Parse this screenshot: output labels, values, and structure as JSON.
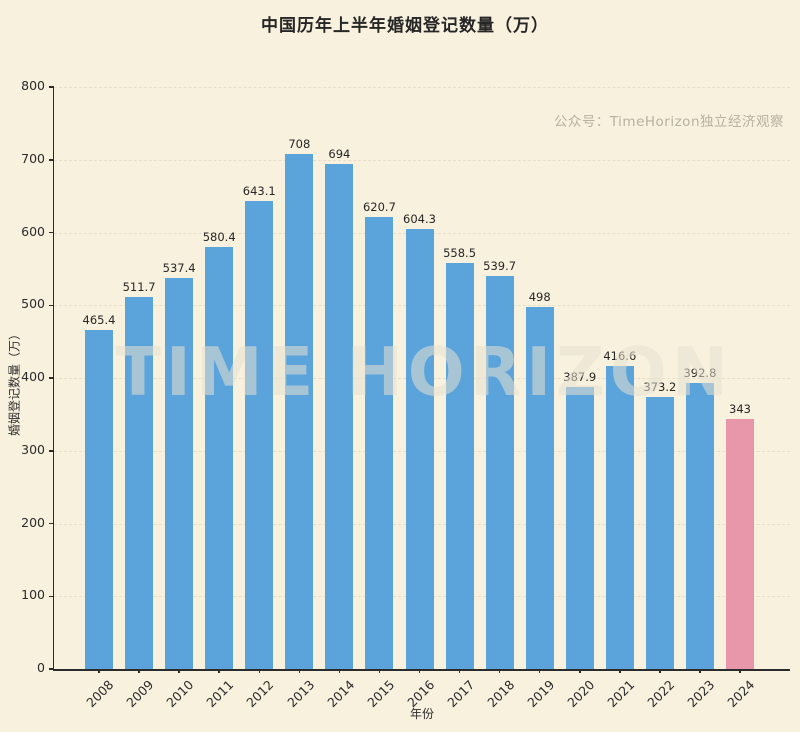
{
  "page": {
    "title": "中国历年上半年婚姻登记数量（万）",
    "watermark_small": "公众号：TimeHorizon独立经济观察",
    "watermark_large": "TIME HORIZON"
  },
  "chart_data": {
    "type": "bar",
    "title": "中国历年上半年婚姻登记数量（万）",
    "xlabel": "年份",
    "ylabel": "婚姻登记数量（万）",
    "categories": [
      "2008",
      "2009",
      "2010",
      "2011",
      "2012",
      "2013",
      "2014",
      "2015",
      "2016",
      "2017",
      "2018",
      "2019",
      "2020",
      "2021",
      "2022",
      "2023",
      "2024"
    ],
    "values": [
      465.4,
      511.7,
      537.4,
      580.4,
      643.1,
      708,
      694,
      620.7,
      604.3,
      558.5,
      539.7,
      498,
      387.9,
      416.6,
      373.2,
      392.8,
      343
    ],
    "bar_labels": [
      "465.4",
      "511.7",
      "537.4",
      "580.4",
      "643.1",
      "708",
      "694",
      "620.7",
      "604.3",
      "558.5",
      "539.7",
      "498",
      "387.9",
      "416.6",
      "373.2",
      "392.8",
      "343"
    ],
    "ylim": [
      0,
      800
    ],
    "yticks": [
      0,
      100,
      200,
      300,
      400,
      500,
      600,
      700,
      800
    ],
    "grid": "horizontal-dashed",
    "legend": "none",
    "highlight_category": "2024",
    "colors": {
      "bar": "#5BA4DB",
      "highlight_bar": "#E897AA",
      "background": "#F8F1DE",
      "grid": "#E7DFC9",
      "axis": "#2B2B2B",
      "watermark": "#B9B0A1"
    }
  }
}
